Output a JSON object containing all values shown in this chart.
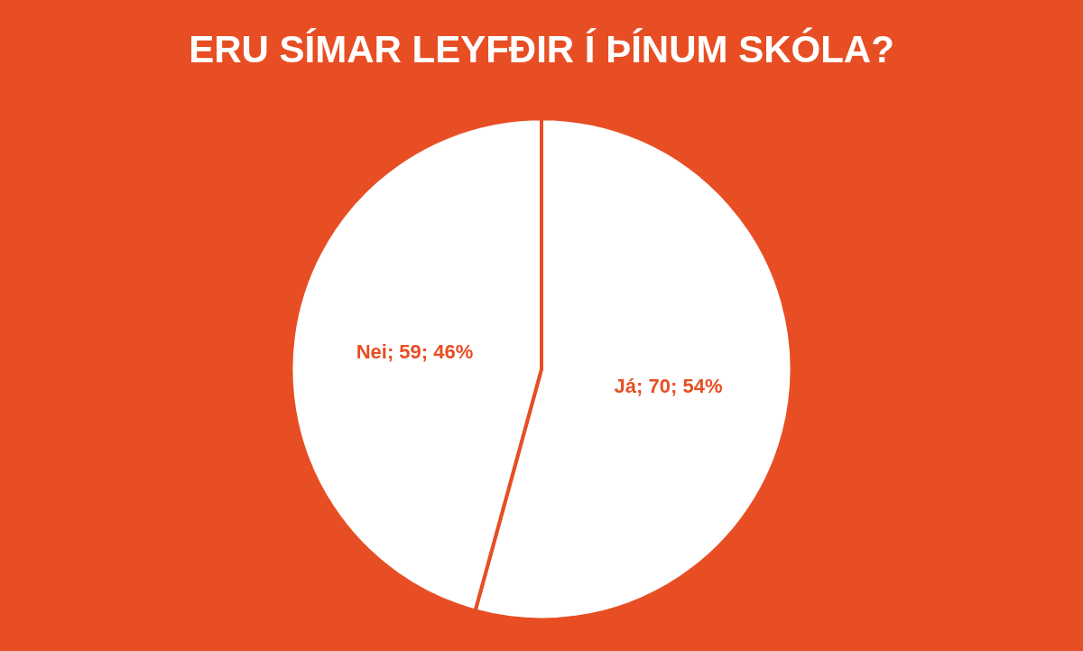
{
  "chart_data": {
    "type": "pie",
    "title": "ERU SÍMAR LEYFÐIR Í ÞÍNUM SKÓLA?",
    "categories": [
      "Já",
      "Nei"
    ],
    "values": [
      70,
      59
    ],
    "colors": [
      "#ffffff",
      "#ffffff"
    ],
    "value_labels": [
      "; 70; 54%",
      "; 59; 46%"
    ],
    "legend": false
  }
}
